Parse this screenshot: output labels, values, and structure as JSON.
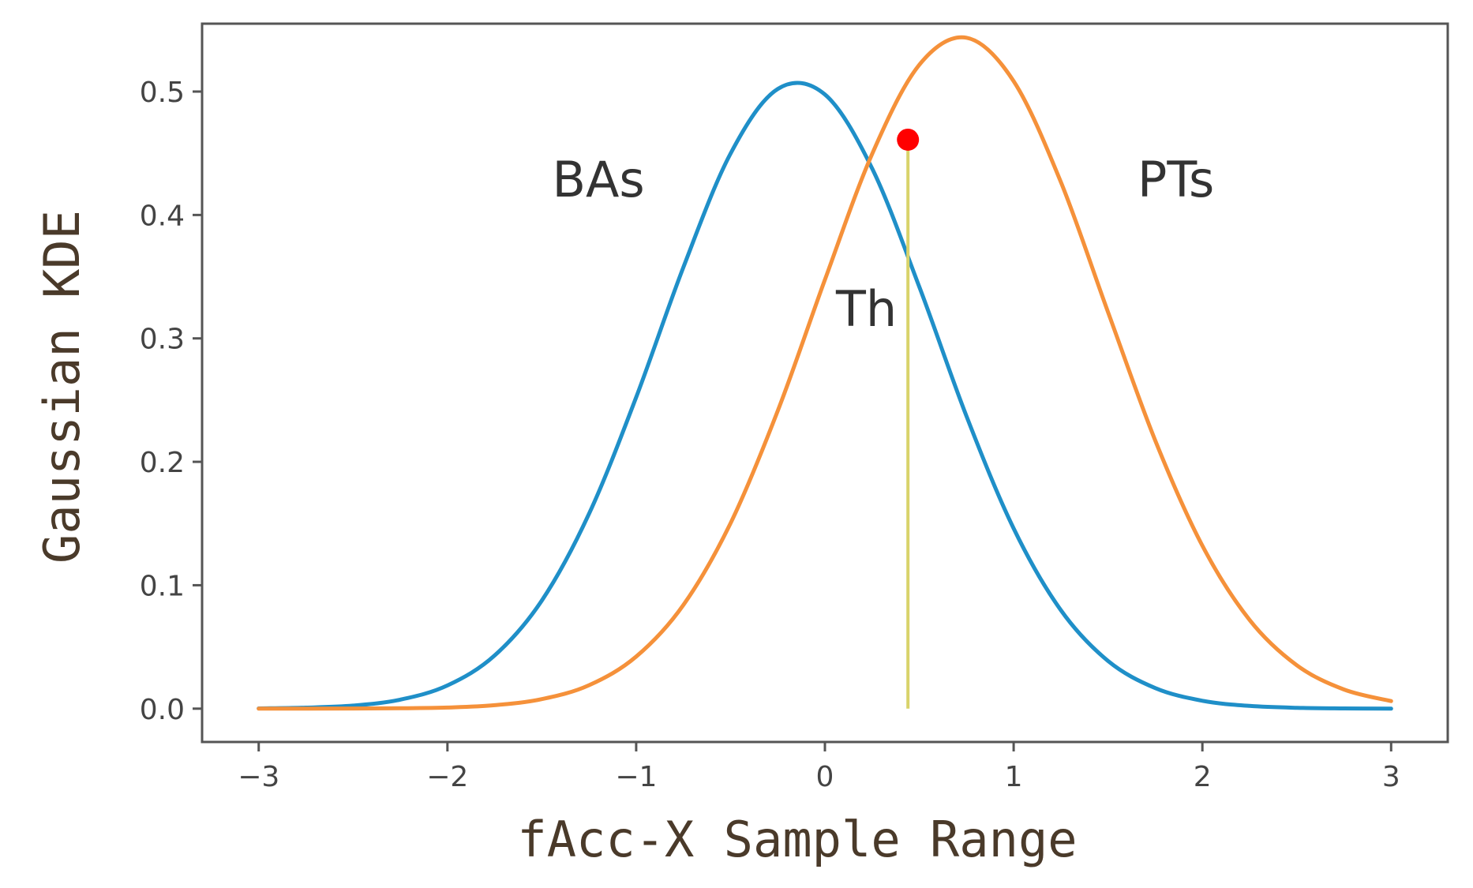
{
  "chart_data": {
    "type": "line",
    "title": "",
    "xlabel": "fAcc-X Sample Range",
    "ylabel": "Gaussian KDE",
    "xlim": [
      -3.3,
      3.3
    ],
    "ylim": [
      -0.027,
      0.555
    ],
    "xticks": [
      -3,
      -2,
      -1,
      0,
      1,
      2,
      3
    ],
    "xtick_labels": [
      "−3",
      "−2",
      "−1",
      "0",
      "1",
      "2",
      "3"
    ],
    "yticks": [
      0.0,
      0.1,
      0.2,
      0.3,
      0.4,
      0.5
    ],
    "ytick_labels": [
      "0.0",
      "0.1",
      "0.2",
      "0.3",
      "0.4",
      "0.5"
    ],
    "grid": false,
    "series": [
      {
        "name": "BAs",
        "color": "#1f8fc8",
        "x": [
          -3.0,
          -2.75,
          -2.5,
          -2.25,
          -2.0,
          -1.75,
          -1.5,
          -1.25,
          -1.0,
          -0.75,
          -0.5,
          -0.25,
          0.0,
          0.25,
          0.5,
          0.75,
          1.0,
          1.25,
          1.5,
          1.75,
          2.0,
          2.25,
          2.5,
          2.75,
          3.0
        ],
        "values": [
          0.0002,
          0.0008,
          0.0025,
          0.0073,
          0.0188,
          0.0431,
          0.0876,
          0.1578,
          0.2523,
          0.3576,
          0.4498,
          0.5021,
          0.4976,
          0.4377,
          0.3419,
          0.2371,
          0.146,
          0.0798,
          0.0387,
          0.0167,
          0.0064,
          0.0022,
          0.0007,
          0.0002,
          0.0
        ]
      },
      {
        "name": "PTs",
        "color": "#f5913a",
        "x": [
          -3.0,
          -2.75,
          -2.5,
          -2.25,
          -2.0,
          -1.75,
          -1.5,
          -1.25,
          -1.0,
          -0.75,
          -0.5,
          -0.25,
          0.0,
          0.25,
          0.5,
          0.75,
          1.0,
          1.25,
          1.5,
          1.75,
          2.0,
          2.25,
          2.5,
          2.75,
          3.0
        ],
        "values": [
          0.0,
          0.0,
          0.0001,
          0.0003,
          0.0009,
          0.0028,
          0.0077,
          0.019,
          0.0422,
          0.084,
          0.1503,
          0.2412,
          0.3475,
          0.4494,
          0.5216,
          0.5436,
          0.5084,
          0.4267,
          0.3214,
          0.2174,
          0.132,
          0.0719,
          0.0352,
          0.0155,
          0.0061
        ]
      }
    ],
    "threshold": {
      "label": "Th",
      "x": 0.44,
      "y": 0.461,
      "line_color": "#d9d36a",
      "marker_color": "#ff0000"
    },
    "annotations": [
      {
        "text": "BAs",
        "x": -1.2,
        "y": 0.415
      },
      {
        "text": "PTs",
        "x": 1.86,
        "y": 0.415
      },
      {
        "text": "Th",
        "x": 0.22,
        "y": 0.31
      }
    ]
  }
}
